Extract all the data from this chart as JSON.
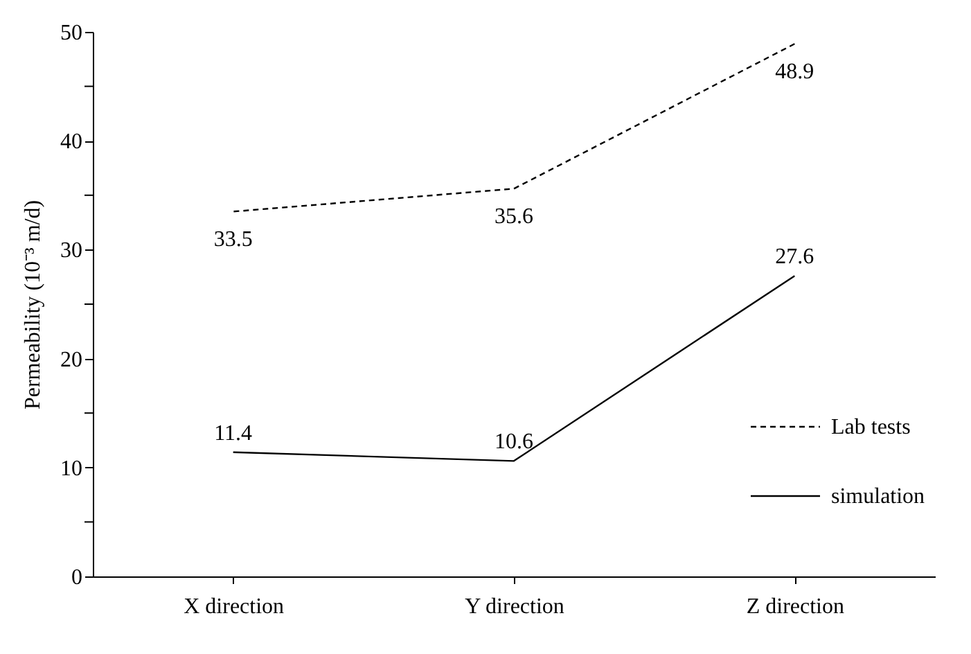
{
  "chart_data": {
    "type": "line",
    "ylabel": "Permeability (10⁻³ m/d)",
    "categories": [
      "X direction",
      "Y direction",
      "Z direction"
    ],
    "series": [
      {
        "name": "Lab tests",
        "color": "#000000",
        "line_style": "dashed",
        "values": [
          33.5,
          35.6,
          48.9
        ]
      },
      {
        "name": "simulation",
        "color": "#000000",
        "line_style": "solid",
        "values": [
          11.4,
          10.6,
          27.6
        ]
      }
    ],
    "ylim": [
      0,
      50
    ],
    "yticks": [
      0,
      {
        "value": 5,
        "label": null
      },
      10,
      {
        "value": 15,
        "label": null
      },
      20,
      {
        "value": 25,
        "label": null
      },
      30,
      {
        "value": 35,
        "label": null
      },
      40,
      {
        "value": 45,
        "label": null
      },
      50
    ],
    "data_labels": true,
    "grid": false,
    "legend": "bottom right",
    "marker": "none"
  }
}
